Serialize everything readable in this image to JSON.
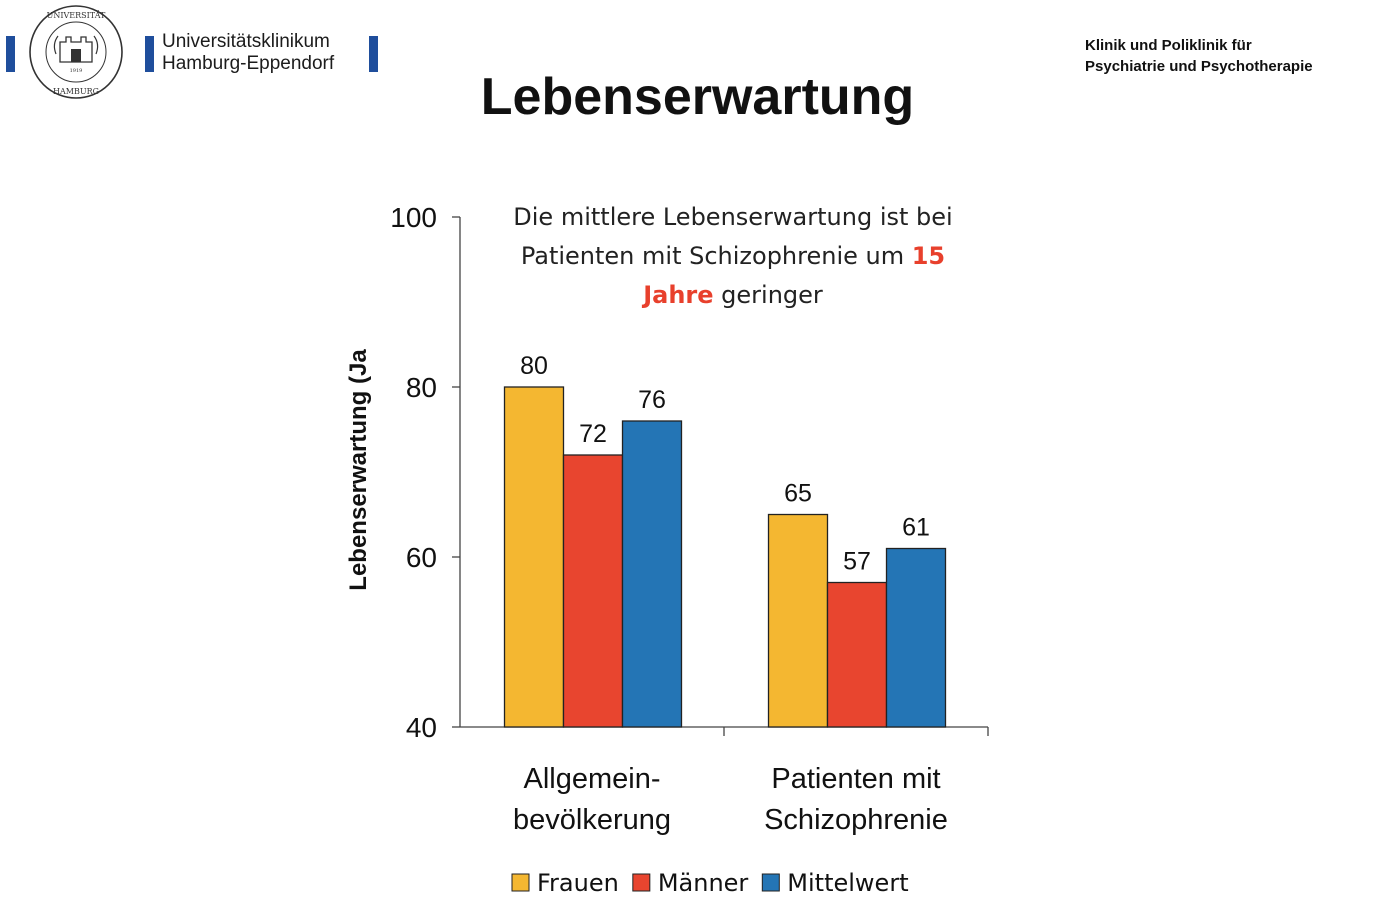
{
  "header": {
    "seal_text_top": "UNIVERSITÄT",
    "seal_text_bottom": "HAMBURG",
    "seal_year": "1919",
    "university_line1": "Universitätsklinikum",
    "university_line2": "Hamburg-Eppendorf",
    "clinic_line1": "Klinik und Poliklinik für",
    "clinic_line2": "Psychiatrie und Psychotherapie",
    "brand_color": "#1f4e9c"
  },
  "title": "Lebenserwartung",
  "annotation": {
    "line1": "Die mittlere Lebenserwartung ist bei",
    "line2_text": "Patienten mit Schizophrenie um ",
    "line2_highlight": "15",
    "line3_highlight": "Jahre",
    "line3_text": " geringer",
    "highlight_color": "#e8402c"
  },
  "chart_data": {
    "type": "bar",
    "ylabel": "Lebenserwartung (Ja",
    "ylim": [
      40,
      100
    ],
    "yticks": [
      40,
      60,
      80,
      100
    ],
    "categories": [
      [
        "Allgemein-",
        "bevölkerung"
      ],
      [
        "Patienten mit",
        "Schizophrenie"
      ]
    ],
    "series": [
      {
        "name": "Frauen",
        "color": "#f4b731",
        "values": [
          80,
          65
        ]
      },
      {
        "name": "Männer",
        "color": "#e8452f",
        "values": [
          72,
          57
        ]
      },
      {
        "name": "Mittelwert",
        "color": "#2475b5",
        "values": [
          76,
          61
        ]
      }
    ],
    "legend_position": "bottom"
  }
}
